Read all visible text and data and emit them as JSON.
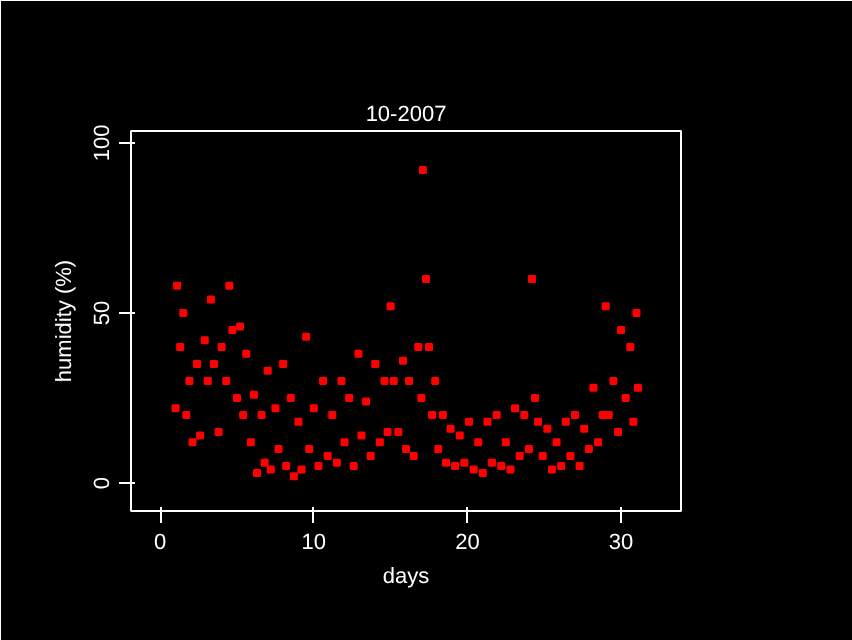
{
  "chart_data": {
    "type": "scatter",
    "title": "10-2007",
    "xlabel": "days",
    "ylabel": "humidity (%)",
    "x": [
      1.0,
      1.1,
      1.3,
      1.5,
      1.7,
      1.9,
      2.1,
      2.4,
      2.6,
      2.9,
      3.1,
      3.3,
      3.5,
      3.8,
      4.0,
      4.3,
      4.5,
      4.7,
      5.0,
      5.2,
      5.4,
      5.6,
      5.9,
      6.1,
      6.3,
      6.6,
      6.8,
      7.0,
      7.2,
      7.5,
      7.7,
      8.0,
      8.2,
      8.5,
      8.7,
      9.0,
      9.2,
      9.5,
      9.7,
      10.0,
      10.3,
      10.6,
      10.9,
      11.2,
      11.5,
      11.8,
      12.0,
      12.3,
      12.6,
      12.9,
      13.1,
      13.4,
      13.7,
      14.0,
      14.3,
      14.6,
      14.8,
      15.0,
      15.2,
      15.5,
      15.8,
      16.0,
      16.2,
      16.5,
      16.8,
      17.0,
      17.1,
      17.3,
      17.5,
      17.7,
      17.9,
      18.1,
      18.4,
      18.6,
      18.9,
      19.2,
      19.5,
      19.8,
      20.1,
      20.4,
      20.7,
      21.0,
      21.3,
      21.6,
      21.9,
      22.2,
      22.5,
      22.8,
      23.1,
      23.4,
      23.7,
      24.0,
      24.2,
      24.4,
      24.6,
      24.9,
      25.2,
      25.5,
      25.8,
      26.1,
      26.4,
      26.7,
      27.0,
      27.3,
      27.6,
      27.9,
      28.2,
      28.5,
      28.8,
      29.0,
      29.2,
      29.5,
      29.8,
      30.0,
      30.3,
      30.6,
      30.8,
      31.0,
      31.1
    ],
    "series": [
      {
        "color": "#ff0000",
        "values": [
          22,
          58,
          40,
          50,
          20,
          30,
          12,
          35,
          14,
          42,
          30,
          54,
          35,
          15,
          40,
          30,
          58,
          45,
          25,
          46,
          20,
          38,
          12,
          26,
          3,
          20,
          6,
          33,
          4,
          22,
          10,
          35,
          5,
          25,
          2,
          18,
          4,
          43,
          10,
          22,
          5,
          30,
          8,
          20,
          6,
          30,
          12,
          25,
          5,
          38,
          14,
          24,
          8,
          35,
          12,
          30,
          15,
          52,
          30,
          15,
          36,
          10,
          30,
          8,
          40,
          25,
          92,
          60,
          40,
          20,
          30,
          10,
          20,
          6,
          16,
          5,
          14,
          6,
          18,
          4,
          12,
          3,
          18,
          6,
          20,
          5,
          12,
          4,
          22,
          8,
          20,
          10,
          60,
          25,
          18,
          8,
          16,
          4,
          12,
          5,
          18,
          8,
          20,
          5,
          16,
          10,
          28,
          12,
          20,
          52,
          20,
          30,
          15,
          45,
          25,
          40,
          18,
          50,
          28
        ]
      }
    ],
    "xlim": [
      -1.9,
      33.9
    ],
    "ylim": [
      -8.2,
      103.5
    ],
    "xticks": [
      0,
      10,
      20,
      30
    ],
    "yticks": [
      0,
      50,
      100
    ],
    "marker": "square",
    "grid": false
  }
}
